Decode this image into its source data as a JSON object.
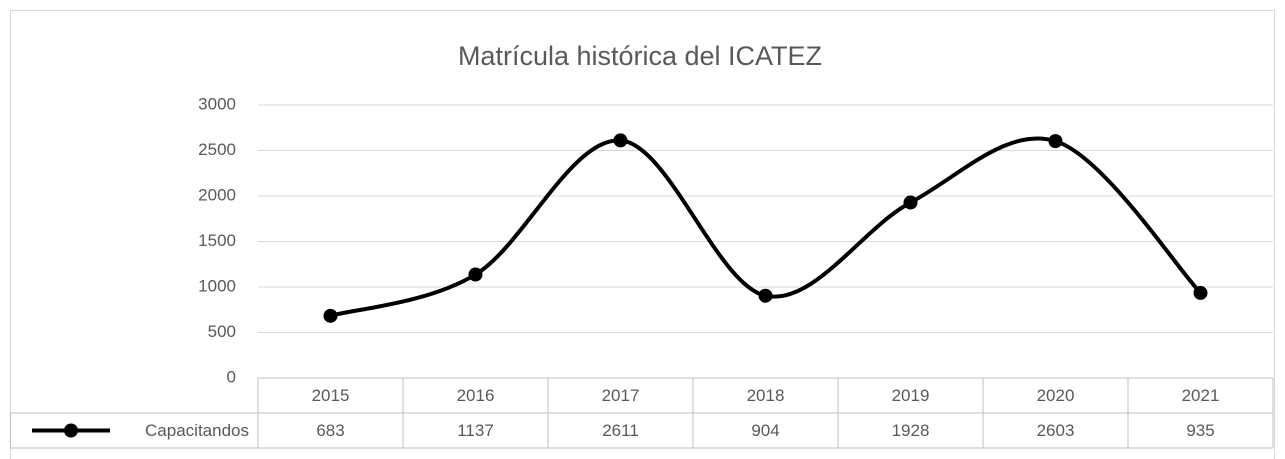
{
  "chart_data": {
    "type": "line",
    "title": "Matrícula histórica del ICATEZ",
    "categories": [
      "2015",
      "2016",
      "2017",
      "2018",
      "2019",
      "2020",
      "2021"
    ],
    "series": [
      {
        "name": "Capacitandos",
        "color": "#000000",
        "values": [
          683,
          1137,
          2611,
          904,
          1928,
          2603,
          935
        ]
      }
    ],
    "ylim": [
      0,
      3000
    ],
    "yticks": [
      0,
      500,
      1000,
      1500,
      2000,
      2500,
      3000
    ],
    "grid": true,
    "smooth": true,
    "data_table": true
  }
}
